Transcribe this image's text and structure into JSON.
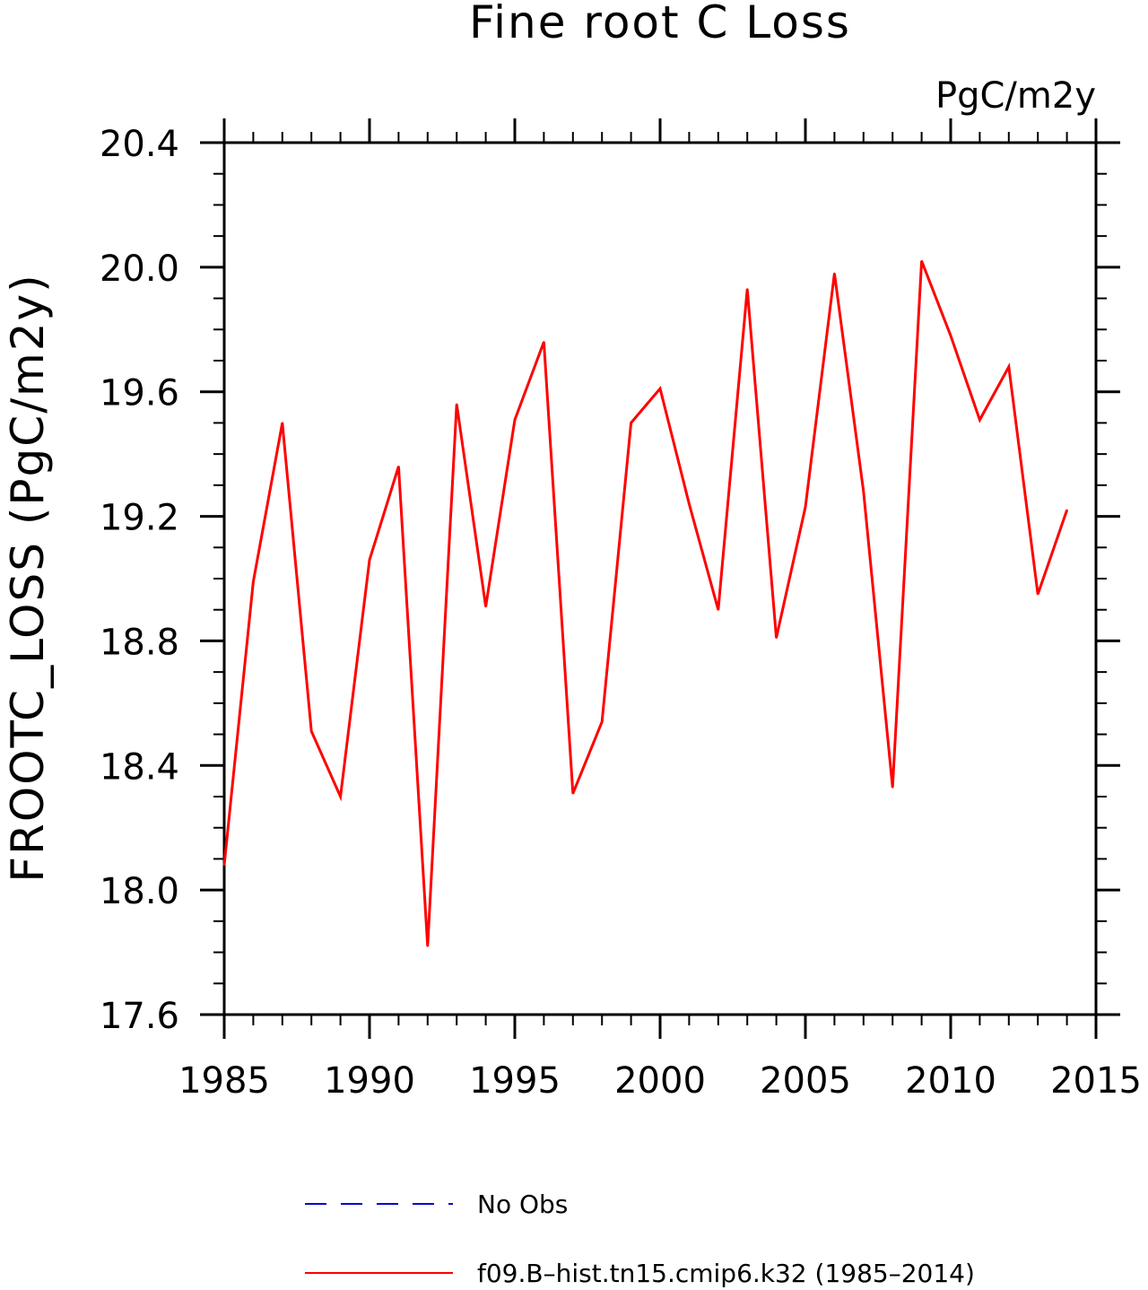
{
  "chart_data": {
    "type": "line",
    "title": "Fine root C Loss",
    "units_label": "PgC/m2y",
    "ylabel": "FROOTC_LOSS  (PgC/m2y)",
    "xlabel": "",
    "xlim": [
      1985,
      2015
    ],
    "ylim": [
      17.6,
      20.4
    ],
    "x_ticks": [
      "1985",
      "1990",
      "1995",
      "2000",
      "2005",
      "2010",
      "2015"
    ],
    "y_ticks": [
      "17.6",
      "18.0",
      "18.4",
      "18.8",
      "19.2",
      "19.6",
      "20.0",
      "20.4"
    ],
    "x_tick_values": [
      1985,
      1990,
      1995,
      2000,
      2005,
      2010,
      2015
    ],
    "y_tick_values": [
      17.6,
      18.0,
      18.4,
      18.8,
      19.2,
      19.6,
      20.0,
      20.4
    ],
    "grid": false,
    "legend_position": "bottom",
    "legend": [
      {
        "label": "No Obs",
        "color": "#0000cc",
        "style": "dashed"
      },
      {
        "label": "f09.B–hist.tn15.cmip6.k32 (1985–2014)",
        "color": "#ff0000",
        "style": "solid"
      }
    ],
    "series": [
      {
        "name": "f09.B–hist.tn15.cmip6.k32 (1985–2014)",
        "color": "#ff0000",
        "x": [
          1985,
          1986,
          1987,
          1988,
          1989,
          1990,
          1991,
          1992,
          1993,
          1994,
          1995,
          1996,
          1997,
          1998,
          1999,
          2000,
          2001,
          2002,
          2003,
          2004,
          2005,
          2006,
          2007,
          2008,
          2009,
          2010,
          2011,
          2012,
          2013,
          2014
        ],
        "values": [
          18.08,
          18.99,
          19.5,
          18.51,
          18.3,
          19.06,
          19.36,
          17.82,
          19.56,
          18.91,
          19.51,
          19.76,
          18.31,
          18.54,
          19.5,
          19.61,
          19.24,
          18.9,
          19.93,
          18.81,
          19.23,
          19.98,
          19.28,
          18.33,
          20.02,
          19.78,
          19.51,
          19.68,
          18.95,
          19.22
        ]
      }
    ]
  }
}
